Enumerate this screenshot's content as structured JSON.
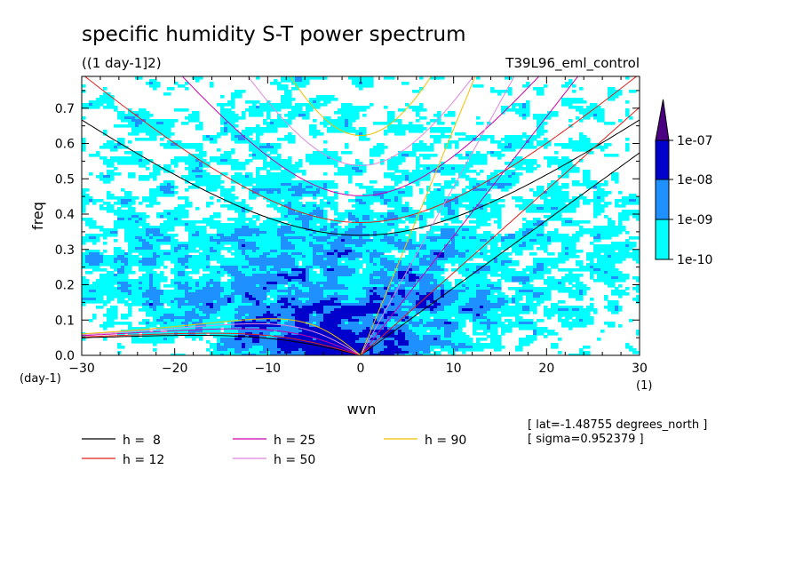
{
  "chart_data": {
    "type": "heatmap",
    "title": "specific humidity S-T power spectrum",
    "subtitle": "((1 day-1]2)",
    "experiment": "T39L96_eml_control",
    "xlabel": "wvn",
    "ylabel": "freq",
    "xunits_left": "(day-1)",
    "xunits_right": "(1)",
    "xlim": [
      -30,
      30
    ],
    "ylim": [
      0.0,
      0.79
    ],
    "xticks": [
      -30,
      -20,
      -10,
      0,
      10,
      20,
      30
    ],
    "xtick_labels": [
      "−30",
      "−20",
      "−10",
      "0",
      "10",
      "20",
      "30"
    ],
    "yticks": [
      0.0,
      0.1,
      0.2,
      0.3,
      0.4,
      0.5,
      0.6,
      0.7
    ],
    "ytick_labels": [
      "0.0",
      "0.1",
      "0.2",
      "0.3",
      "0.4",
      "0.5",
      "0.6",
      "0.7"
    ],
    "colorbar": {
      "levels": [
        "1e-10",
        "1e-09",
        "1e-08",
        "1e-07"
      ],
      "colors": [
        "#00ffff",
        "#1e90ff",
        "#0000cd",
        "#4b0082"
      ]
    },
    "dispersion_curves": [
      {
        "label": "h =  8",
        "h": 8,
        "color": "#000000"
      },
      {
        "label": "h = 12",
        "h": 12,
        "color": "#e0201b"
      },
      {
        "label": "h = 25",
        "h": 25,
        "color": "#cc00aa"
      },
      {
        "label": "h = 50",
        "h": 50,
        "color": "#dd88dd"
      },
      {
        "label": "h = 90",
        "h": 90,
        "color": "#f0c000"
      }
    ],
    "annotations": [
      "[ lat=-1.48755 degrees_north ]",
      "[ sigma=0.952379 ]"
    ]
  }
}
